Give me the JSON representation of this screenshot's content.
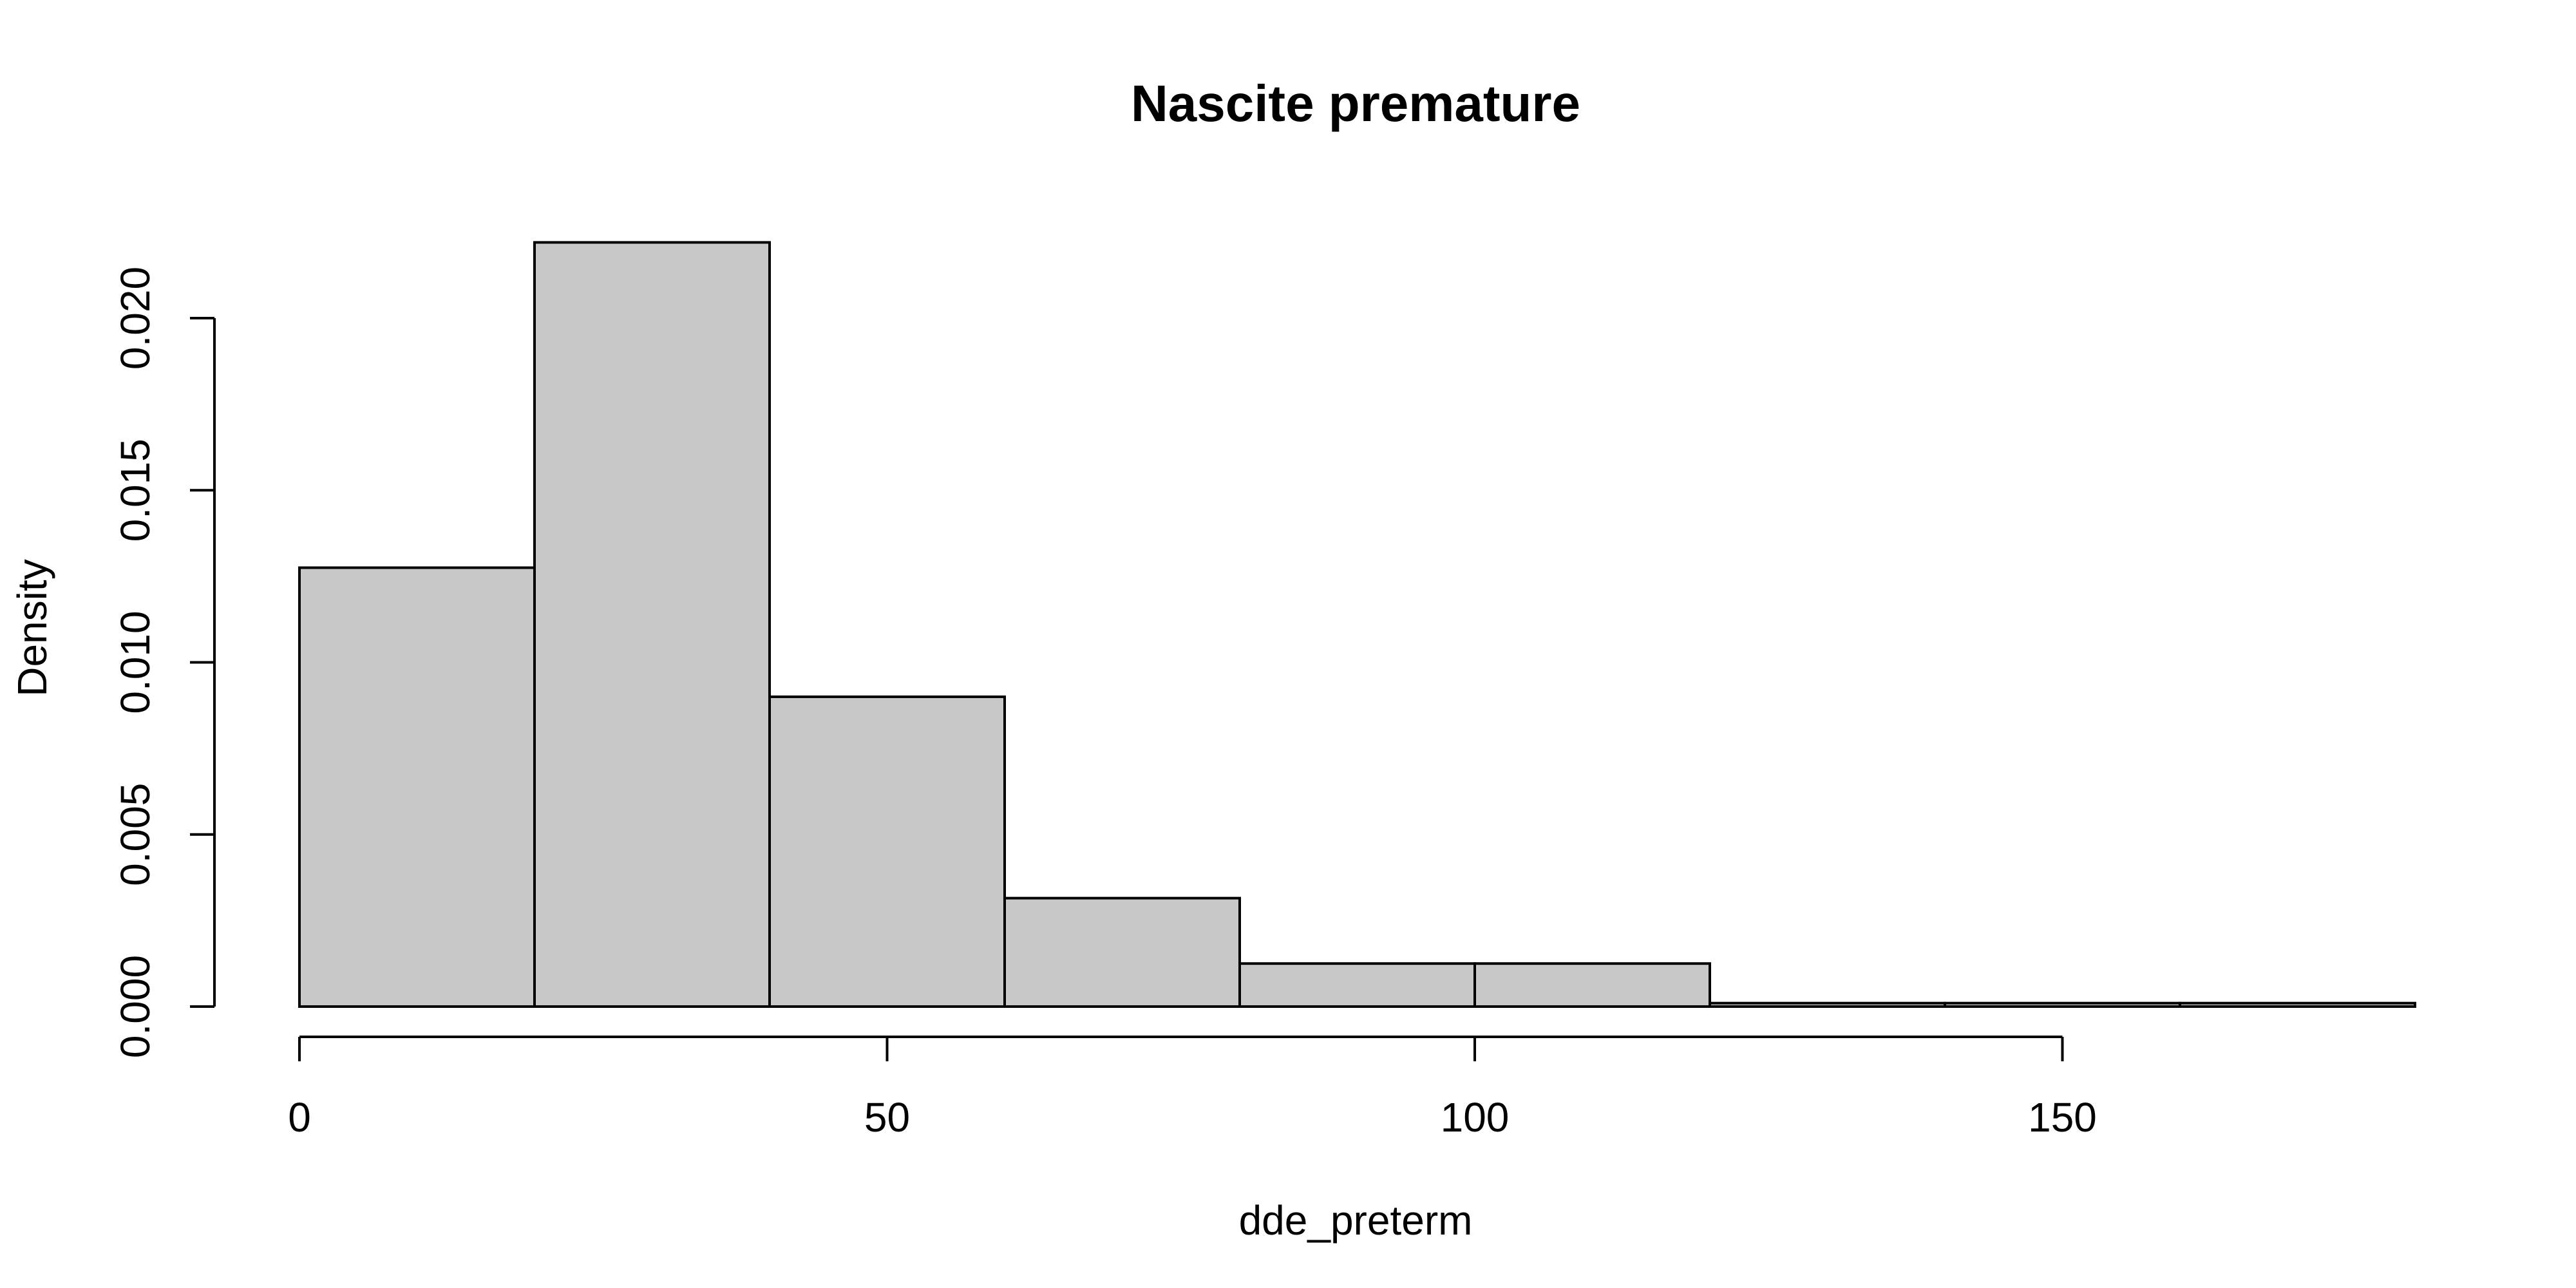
{
  "chart_data": {
    "type": "bar",
    "subtype": "histogram",
    "title": "Nascite premature",
    "xlabel": "dde_preterm",
    "ylabel": "Density",
    "bin_edges": [
      0,
      20,
      40,
      60,
      80,
      100,
      120,
      140,
      160,
      180
    ],
    "values": [
      0.01275,
      0.0222,
      0.009,
      0.00315,
      0.00125,
      0.00125,
      0.0001,
      0.0001,
      0.0001
    ],
    "xlim": [
      0,
      180
    ],
    "ylim": [
      0,
      0.022
    ],
    "x_ticks": [
      0,
      50,
      100,
      150
    ],
    "x_tick_labels": [
      "0",
      "50",
      "100",
      "150"
    ],
    "y_ticks": [
      0,
      0.005,
      0.01,
      0.015,
      0.02
    ],
    "y_tick_labels": [
      "0.000",
      "0.005",
      "0.010",
      "0.015",
      "0.020"
    ],
    "bar_fill": "#c8c8c8",
    "bar_edge": "#000000",
    "grid": false,
    "legend": "none"
  }
}
